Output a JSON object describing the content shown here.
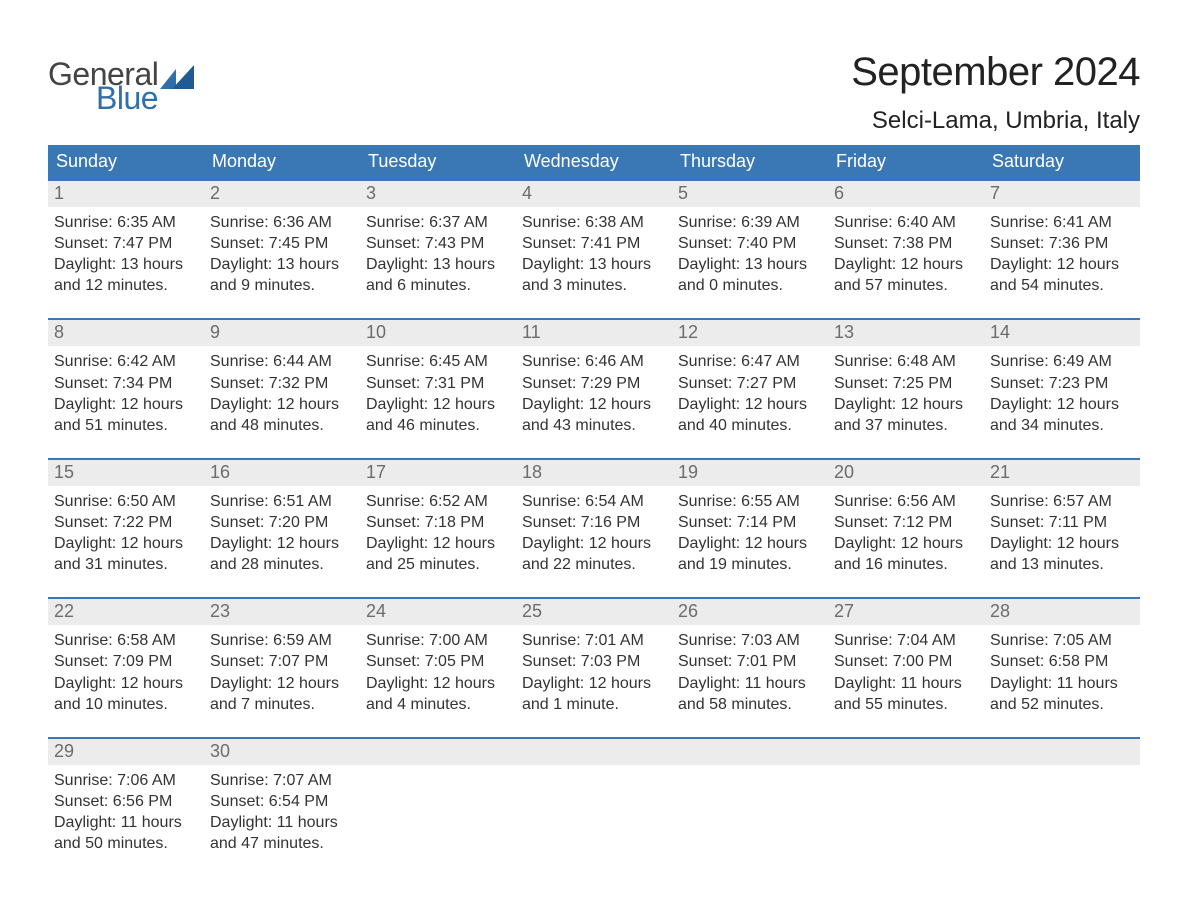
{
  "logo": {
    "line1": "General",
    "line2": "Blue"
  },
  "title": "September 2024",
  "location": "Selci-Lama, Umbria, Italy",
  "colors": {
    "header_bg": "#3a78b5",
    "header_text": "#ffffff",
    "daynum_bg": "#ececec",
    "daynum_text": "#6c6c6c",
    "body_text": "#333333",
    "week_border": "#3a78b5",
    "logo_gray": "#444444",
    "logo_blue": "#2f6fab",
    "background": "#ffffff"
  },
  "fonts": {
    "title_size_pt": 30,
    "location_size_pt": 18,
    "dow_size_pt": 14,
    "daynum_size_pt": 14,
    "body_size_pt": 12
  },
  "day_headers": [
    "Sunday",
    "Monday",
    "Tuesday",
    "Wednesday",
    "Thursday",
    "Friday",
    "Saturday"
  ],
  "weeks": [
    [
      {
        "n": "1",
        "sunrise": "Sunrise: 6:35 AM",
        "sunset": "Sunset: 7:47 PM",
        "dl1": "Daylight: 13 hours",
        "dl2": "and 12 minutes."
      },
      {
        "n": "2",
        "sunrise": "Sunrise: 6:36 AM",
        "sunset": "Sunset: 7:45 PM",
        "dl1": "Daylight: 13 hours",
        "dl2": "and 9 minutes."
      },
      {
        "n": "3",
        "sunrise": "Sunrise: 6:37 AM",
        "sunset": "Sunset: 7:43 PM",
        "dl1": "Daylight: 13 hours",
        "dl2": "and 6 minutes."
      },
      {
        "n": "4",
        "sunrise": "Sunrise: 6:38 AM",
        "sunset": "Sunset: 7:41 PM",
        "dl1": "Daylight: 13 hours",
        "dl2": "and 3 minutes."
      },
      {
        "n": "5",
        "sunrise": "Sunrise: 6:39 AM",
        "sunset": "Sunset: 7:40 PM",
        "dl1": "Daylight: 13 hours",
        "dl2": "and 0 minutes."
      },
      {
        "n": "6",
        "sunrise": "Sunrise: 6:40 AM",
        "sunset": "Sunset: 7:38 PM",
        "dl1": "Daylight: 12 hours",
        "dl2": "and 57 minutes."
      },
      {
        "n": "7",
        "sunrise": "Sunrise: 6:41 AM",
        "sunset": "Sunset: 7:36 PM",
        "dl1": "Daylight: 12 hours",
        "dl2": "and 54 minutes."
      }
    ],
    [
      {
        "n": "8",
        "sunrise": "Sunrise: 6:42 AM",
        "sunset": "Sunset: 7:34 PM",
        "dl1": "Daylight: 12 hours",
        "dl2": "and 51 minutes."
      },
      {
        "n": "9",
        "sunrise": "Sunrise: 6:44 AM",
        "sunset": "Sunset: 7:32 PM",
        "dl1": "Daylight: 12 hours",
        "dl2": "and 48 minutes."
      },
      {
        "n": "10",
        "sunrise": "Sunrise: 6:45 AM",
        "sunset": "Sunset: 7:31 PM",
        "dl1": "Daylight: 12 hours",
        "dl2": "and 46 minutes."
      },
      {
        "n": "11",
        "sunrise": "Sunrise: 6:46 AM",
        "sunset": "Sunset: 7:29 PM",
        "dl1": "Daylight: 12 hours",
        "dl2": "and 43 minutes."
      },
      {
        "n": "12",
        "sunrise": "Sunrise: 6:47 AM",
        "sunset": "Sunset: 7:27 PM",
        "dl1": "Daylight: 12 hours",
        "dl2": "and 40 minutes."
      },
      {
        "n": "13",
        "sunrise": "Sunrise: 6:48 AM",
        "sunset": "Sunset: 7:25 PM",
        "dl1": "Daylight: 12 hours",
        "dl2": "and 37 minutes."
      },
      {
        "n": "14",
        "sunrise": "Sunrise: 6:49 AM",
        "sunset": "Sunset: 7:23 PM",
        "dl1": "Daylight: 12 hours",
        "dl2": "and 34 minutes."
      }
    ],
    [
      {
        "n": "15",
        "sunrise": "Sunrise: 6:50 AM",
        "sunset": "Sunset: 7:22 PM",
        "dl1": "Daylight: 12 hours",
        "dl2": "and 31 minutes."
      },
      {
        "n": "16",
        "sunrise": "Sunrise: 6:51 AM",
        "sunset": "Sunset: 7:20 PM",
        "dl1": "Daylight: 12 hours",
        "dl2": "and 28 minutes."
      },
      {
        "n": "17",
        "sunrise": "Sunrise: 6:52 AM",
        "sunset": "Sunset: 7:18 PM",
        "dl1": "Daylight: 12 hours",
        "dl2": "and 25 minutes."
      },
      {
        "n": "18",
        "sunrise": "Sunrise: 6:54 AM",
        "sunset": "Sunset: 7:16 PM",
        "dl1": "Daylight: 12 hours",
        "dl2": "and 22 minutes."
      },
      {
        "n": "19",
        "sunrise": "Sunrise: 6:55 AM",
        "sunset": "Sunset: 7:14 PM",
        "dl1": "Daylight: 12 hours",
        "dl2": "and 19 minutes."
      },
      {
        "n": "20",
        "sunrise": "Sunrise: 6:56 AM",
        "sunset": "Sunset: 7:12 PM",
        "dl1": "Daylight: 12 hours",
        "dl2": "and 16 minutes."
      },
      {
        "n": "21",
        "sunrise": "Sunrise: 6:57 AM",
        "sunset": "Sunset: 7:11 PM",
        "dl1": "Daylight: 12 hours",
        "dl2": "and 13 minutes."
      }
    ],
    [
      {
        "n": "22",
        "sunrise": "Sunrise: 6:58 AM",
        "sunset": "Sunset: 7:09 PM",
        "dl1": "Daylight: 12 hours",
        "dl2": "and 10 minutes."
      },
      {
        "n": "23",
        "sunrise": "Sunrise: 6:59 AM",
        "sunset": "Sunset: 7:07 PM",
        "dl1": "Daylight: 12 hours",
        "dl2": "and 7 minutes."
      },
      {
        "n": "24",
        "sunrise": "Sunrise: 7:00 AM",
        "sunset": "Sunset: 7:05 PM",
        "dl1": "Daylight: 12 hours",
        "dl2": "and 4 minutes."
      },
      {
        "n": "25",
        "sunrise": "Sunrise: 7:01 AM",
        "sunset": "Sunset: 7:03 PM",
        "dl1": "Daylight: 12 hours",
        "dl2": "and 1 minute."
      },
      {
        "n": "26",
        "sunrise": "Sunrise: 7:03 AM",
        "sunset": "Sunset: 7:01 PM",
        "dl1": "Daylight: 11 hours",
        "dl2": "and 58 minutes."
      },
      {
        "n": "27",
        "sunrise": "Sunrise: 7:04 AM",
        "sunset": "Sunset: 7:00 PM",
        "dl1": "Daylight: 11 hours",
        "dl2": "and 55 minutes."
      },
      {
        "n": "28",
        "sunrise": "Sunrise: 7:05 AM",
        "sunset": "Sunset: 6:58 PM",
        "dl1": "Daylight: 11 hours",
        "dl2": "and 52 minutes."
      }
    ],
    [
      {
        "n": "29",
        "sunrise": "Sunrise: 7:06 AM",
        "sunset": "Sunset: 6:56 PM",
        "dl1": "Daylight: 11 hours",
        "dl2": "and 50 minutes."
      },
      {
        "n": "30",
        "sunrise": "Sunrise: 7:07 AM",
        "sunset": "Sunset: 6:54 PM",
        "dl1": "Daylight: 11 hours",
        "dl2": "and 47 minutes."
      },
      {
        "n": "",
        "sunrise": "",
        "sunset": "",
        "dl1": "",
        "dl2": ""
      },
      {
        "n": "",
        "sunrise": "",
        "sunset": "",
        "dl1": "",
        "dl2": ""
      },
      {
        "n": "",
        "sunrise": "",
        "sunset": "",
        "dl1": "",
        "dl2": ""
      },
      {
        "n": "",
        "sunrise": "",
        "sunset": "",
        "dl1": "",
        "dl2": ""
      },
      {
        "n": "",
        "sunrise": "",
        "sunset": "",
        "dl1": "",
        "dl2": ""
      }
    ]
  ]
}
